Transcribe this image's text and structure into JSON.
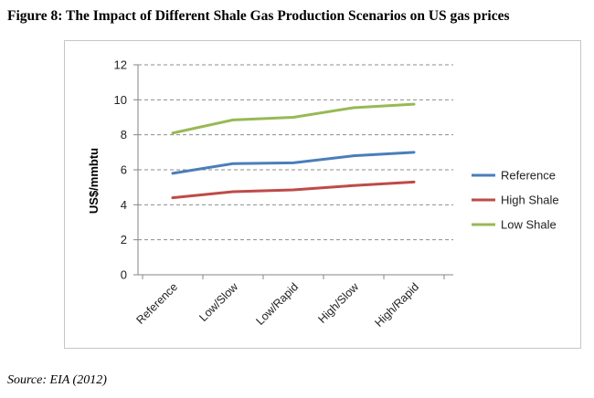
{
  "figure": {
    "title": "Figure 8: The Impact of Different Shale Gas Production Scenarios on US gas prices",
    "source": "Source: EIA (2012)"
  },
  "colors": {
    "reference": "#4a7ebb",
    "high_shale": "#be4b48",
    "low_shale": "#98b954",
    "grid": "#8c8c8c",
    "axis": "#868686"
  },
  "chart_data": {
    "type": "line",
    "title": "",
    "xlabel": "",
    "ylabel": "US$/mmbtu",
    "ylim": [
      0,
      12
    ],
    "yticks": [
      0,
      2,
      4,
      6,
      8,
      10,
      12
    ],
    "grid": true,
    "legend_position": "right",
    "categories": [
      "Reference",
      "Low/Slow",
      "Low/Rapid",
      "High/Slow",
      "High/Rapid"
    ],
    "series": [
      {
        "name": "Reference",
        "color": "#4a7ebb",
        "values": [
          5.8,
          6.35,
          6.4,
          6.8,
          7.0
        ]
      },
      {
        "name": "High Shale",
        "color": "#be4b48",
        "values": [
          4.4,
          4.75,
          4.85,
          5.1,
          5.3
        ]
      },
      {
        "name": "Low Shale",
        "color": "#98b954",
        "values": [
          8.1,
          8.85,
          9.0,
          9.55,
          9.75
        ]
      }
    ]
  }
}
